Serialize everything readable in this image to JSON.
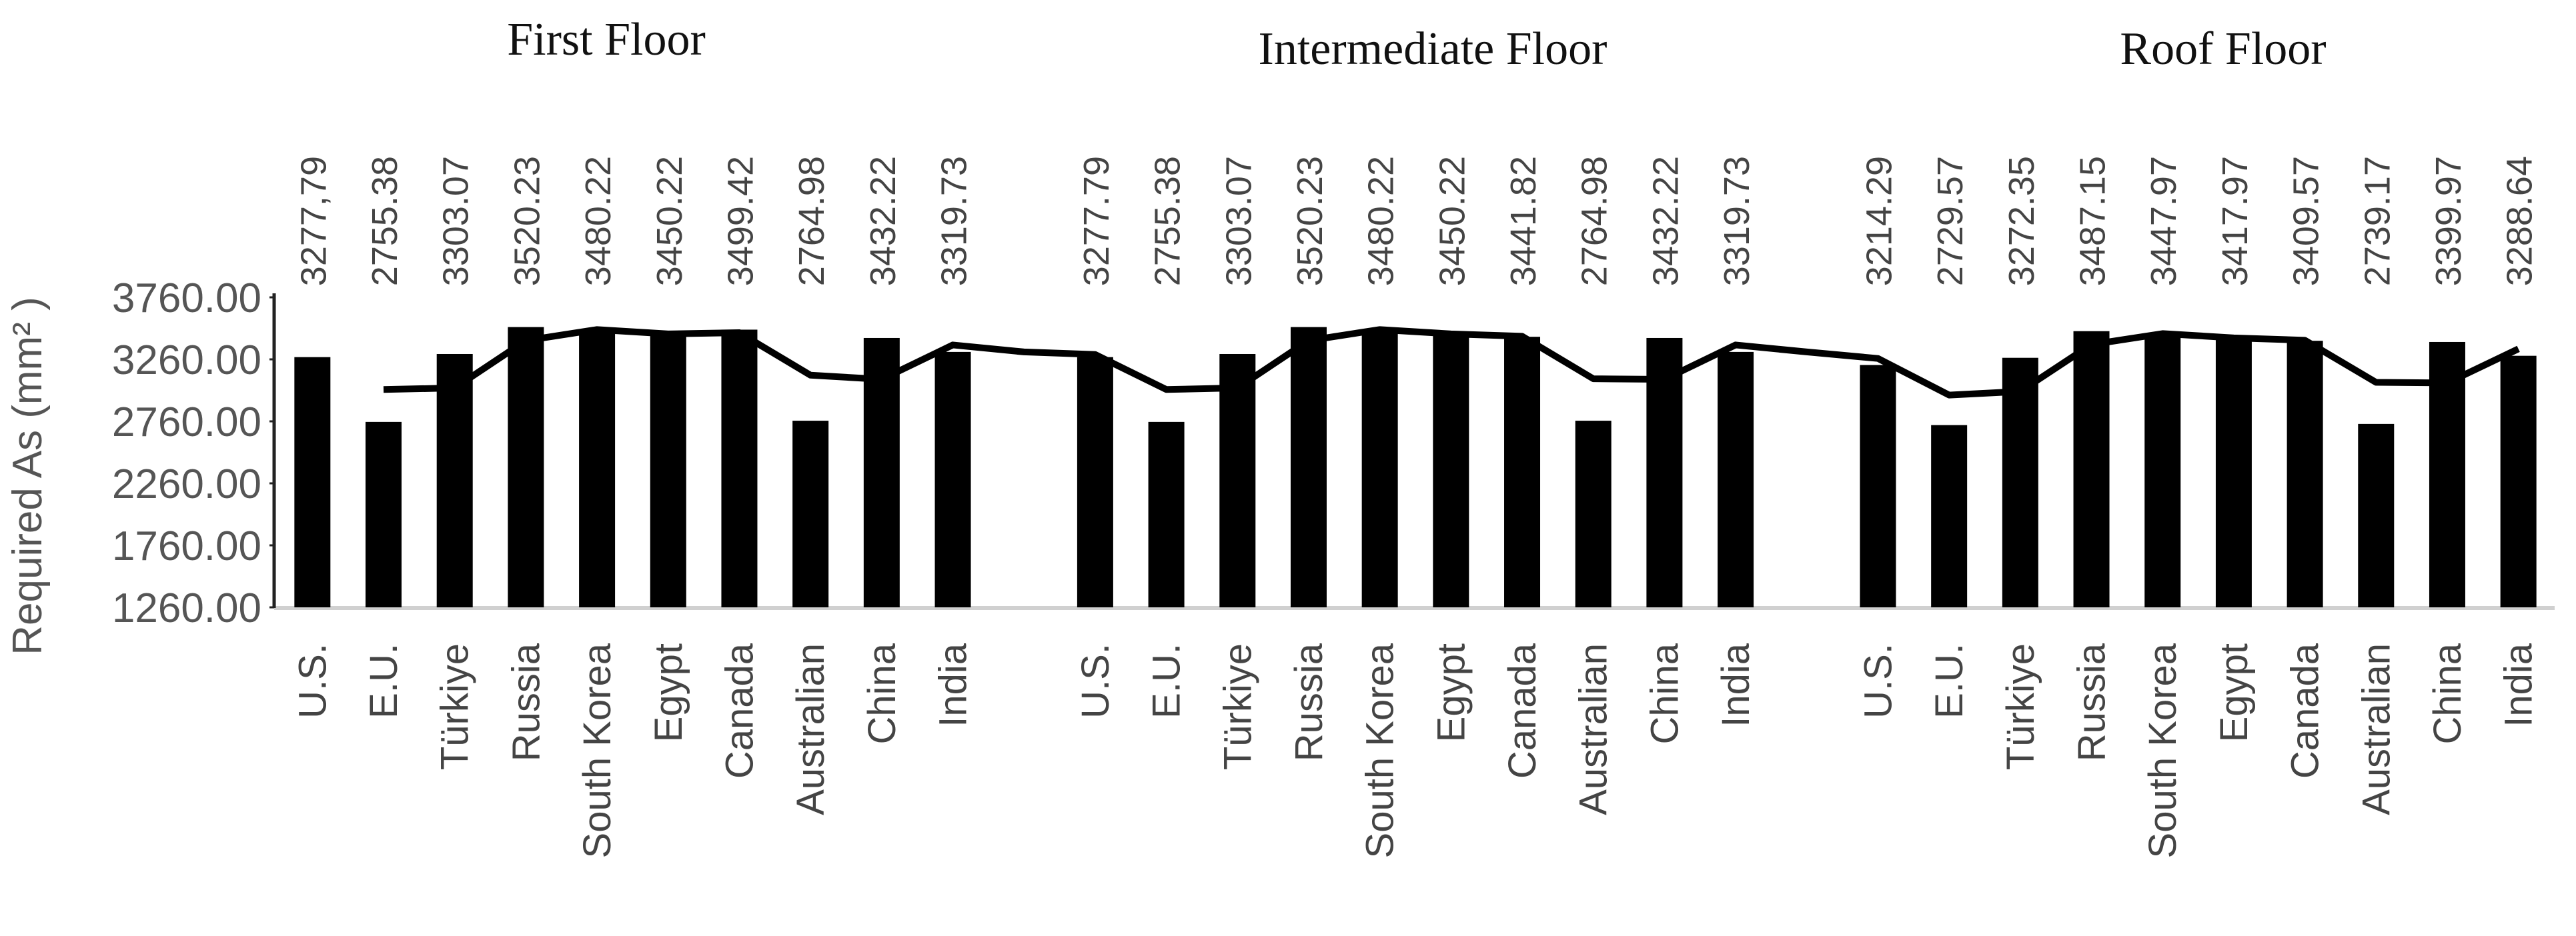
{
  "chart_data": {
    "type": "bar",
    "y_label": "Required  As (mm² )",
    "group_labels": [
      "First Floor",
      "Intermediate Floor",
      "Roof Floor"
    ],
    "categories": [
      "U.S.",
      "E.U.",
      "Türkiye",
      "Russia",
      "South Korea",
      "Egypt",
      "Canada",
      "Australian",
      "China",
      "India",
      null,
      "U.S.",
      "E.U.",
      "Türkiye",
      "Russia",
      "South Korea",
      "Egypt",
      "Canada",
      "Australian",
      "China",
      "India",
      null,
      "U.S.",
      "E.U.",
      "Türkiye",
      "Russia",
      "South Korea",
      "Egypt",
      "Canada",
      "Australian",
      "China",
      "India"
    ],
    "series": [
      {
        "type": "bar",
        "color": "#000000",
        "values": [
          3277.79,
          2755.38,
          3303.07,
          3520.23,
          3480.22,
          3450.22,
          3499.42,
          2764.98,
          3432.22,
          3319.73,
          null,
          3277.79,
          2755.38,
          3303.07,
          3520.23,
          3480.22,
          3450.22,
          3441.82,
          2764.98,
          3432.22,
          3319.73,
          null,
          3214.29,
          2729.57,
          3272.35,
          3487.15,
          3447.97,
          3417.97,
          3409.57,
          2739.17,
          3399.97,
          3288.64
        ],
        "value_labels": [
          "3277,79",
          "2755.38",
          "3303.07",
          "3520.23",
          "3480.22",
          "3450.22",
          "3499.42",
          "2764.98",
          "3432.22",
          "3319.73",
          null,
          "3277.79",
          "2755.38",
          "3303.07",
          "3520.23",
          "3480.22",
          "3450.22",
          "3441.82",
          "2764.98",
          "3432.22",
          "3319.73",
          null,
          "3214.29",
          "2729.57",
          "3272.35",
          "3487.15",
          "3447.97",
          "3417.97",
          "3409.57",
          "2739.17",
          "3399.97",
          "3288.64"
        ]
      },
      {
        "type": "line",
        "color": "#000000",
        "values": [
          null,
          3016.6,
          3029.2,
          3411.7,
          3500.2,
          3465.2,
          3474.8,
          3132.2,
          3098.6,
          3376.0,
          3319.7,
          3298.8,
          3016.6,
          3029.2,
          3411.7,
          3500.2,
          3465.2,
          3446.0,
          3103.4,
          3098.6,
          3376.0,
          3319.7,
          3267.0,
          2971.9,
          3001.0,
          3379.8,
          3467.6,
          3433.0,
          3413.8,
          3074.4,
          3069.6,
          3344.3
        ]
      }
    ],
    "ylim": [
      1260,
      3760
    ],
    "yticks": [
      {
        "value": 1260,
        "label": "1260.00"
      },
      {
        "value": 1760,
        "label": "1760.00"
      },
      {
        "value": 2260,
        "label": "2260.00"
      },
      {
        "value": 2760,
        "label": "2760.00"
      },
      {
        "value": 3260,
        "label": "3260.00"
      },
      {
        "value": 3760,
        "label": "3760.00"
      }
    ],
    "grid": false
  }
}
